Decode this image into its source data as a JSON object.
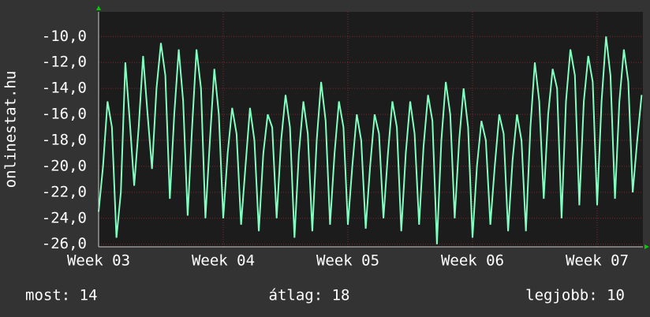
{
  "chart_data": {
    "type": "line",
    "y_label": "onlinestat.hu",
    "categories": [
      "Week 03",
      null,
      null,
      null,
      null,
      null,
      null,
      null,
      null,
      null,
      null,
      null,
      null,
      null,
      null,
      null,
      null,
      null,
      null,
      null,
      null,
      null,
      null,
      null,
      null,
      null,
      null,
      null,
      "Week 04",
      null,
      null,
      null,
      null,
      null,
      null,
      null,
      null,
      null,
      null,
      null,
      null,
      null,
      null,
      null,
      null,
      null,
      null,
      null,
      null,
      null,
      null,
      null,
      null,
      null,
      null,
      null,
      "Week 05",
      null,
      null,
      null,
      null,
      null,
      null,
      null,
      null,
      null,
      null,
      null,
      null,
      null,
      null,
      null,
      null,
      null,
      null,
      null,
      null,
      null,
      null,
      null,
      null,
      null,
      null,
      null,
      "Week 06",
      null,
      null,
      null,
      null,
      null,
      null,
      null,
      null,
      null,
      null,
      null,
      null,
      null,
      null,
      null,
      null,
      null,
      null,
      null,
      null,
      null,
      null,
      null,
      null,
      null,
      null,
      null,
      "Week 07",
      null,
      null,
      null,
      null,
      null,
      null,
      null,
      null,
      null,
      null
    ],
    "series": [
      {
        "color": "#80ffc0",
        "values": [
          -23.5,
          -20,
          -15,
          -17,
          -25.5,
          -22,
          -12,
          -16.5,
          -21.5,
          -17,
          -11.5,
          -16,
          -20.2,
          -14,
          -10.5,
          -13,
          -22.5,
          -16,
          -11,
          -15,
          -23.8,
          -17,
          -11,
          -14,
          -24,
          -18,
          -12.5,
          -16,
          -24,
          -19,
          -15.5,
          -17.5,
          -24.5,
          -20,
          -15.5,
          -18,
          -25,
          -19,
          -16,
          -17,
          -24,
          -18,
          -14.5,
          -17,
          -25.5,
          -19,
          -15,
          -17.5,
          -25,
          -18,
          -13.5,
          -16.5,
          -24.5,
          -19,
          -15,
          -17,
          -24.5,
          -20,
          -16,
          -18,
          -24.8,
          -20,
          -16,
          -17.5,
          -24,
          -19,
          -15,
          -17,
          -25,
          -19,
          -15,
          -17.5,
          -24.5,
          -18.5,
          -14.5,
          -16.5,
          -26,
          -18,
          -13.5,
          -16,
          -24,
          -18,
          -14,
          -17,
          -25.5,
          -20,
          -16.5,
          -18,
          -24.5,
          -20,
          -16,
          -17.5,
          -25,
          -19.5,
          -16,
          -18,
          -25,
          -17,
          -12,
          -15,
          -22.5,
          -16,
          -12.5,
          -14,
          -24,
          -15,
          -11,
          -13,
          -23,
          -15,
          -11.5,
          -13.5,
          -23,
          -15,
          -10,
          -13,
          -22.5,
          -15,
          -11,
          -13.5,
          -22,
          -18,
          -14.5
        ]
      }
    ],
    "ylim": [
      -26.2,
      -8.1
    ],
    "yticks": [
      {
        "value": -26,
        "label": "-26,0"
      },
      {
        "value": -24,
        "label": "-24,0"
      },
      {
        "value": -22,
        "label": "-22,0"
      },
      {
        "value": -20,
        "label": "-20,0"
      },
      {
        "value": -18,
        "label": "-18,0"
      },
      {
        "value": -16,
        "label": "-16,0"
      },
      {
        "value": -14,
        "label": "-14,0"
      },
      {
        "value": -12,
        "label": "-12,0"
      },
      {
        "value": -10,
        "label": "-10,0"
      }
    ],
    "grid": true,
    "annotations": [
      "most: 14",
      "átlag: 18",
      "legjobb: 10"
    ]
  }
}
